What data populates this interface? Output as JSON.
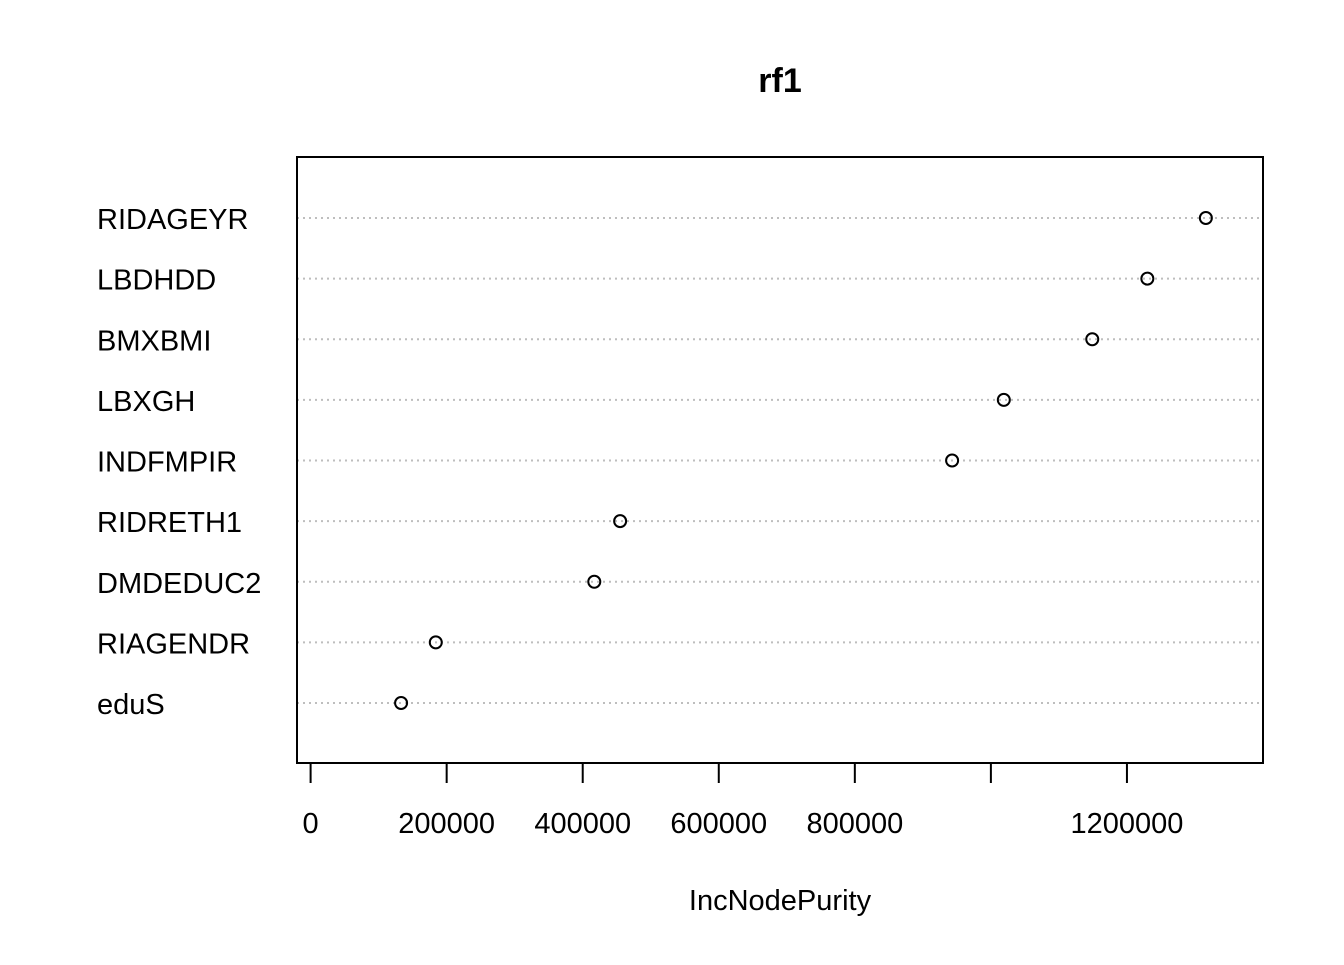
{
  "chart_data": {
    "type": "scatter",
    "subtype": "dotchart",
    "title": "rf1",
    "xlabel": "IncNodePurity",
    "ylabel": "",
    "xlim": [
      -20000,
      1400000
    ],
    "x_ticks": [
      0,
      200000,
      400000,
      600000,
      800000,
      1000000,
      1200000
    ],
    "x_tick_labels": [
      "0",
      "200000",
      "400000",
      "600000",
      "800000",
      "",
      "1200000"
    ],
    "categories": [
      "RIDAGEYR",
      "LBDHDD",
      "BMXBMI",
      "LBXGH",
      "INDFMPIR",
      "RIDRETH1",
      "DMDEDUC2",
      "RIAGENDR",
      "eduS"
    ],
    "values": [
      1316000,
      1230000,
      1149000,
      1019000,
      943000,
      455000,
      417000,
      184000,
      133000
    ],
    "grid": "horizontal dotted",
    "colors": {
      "point_stroke": "#000000",
      "grid": "#bebebe",
      "frame": "#000000"
    }
  }
}
